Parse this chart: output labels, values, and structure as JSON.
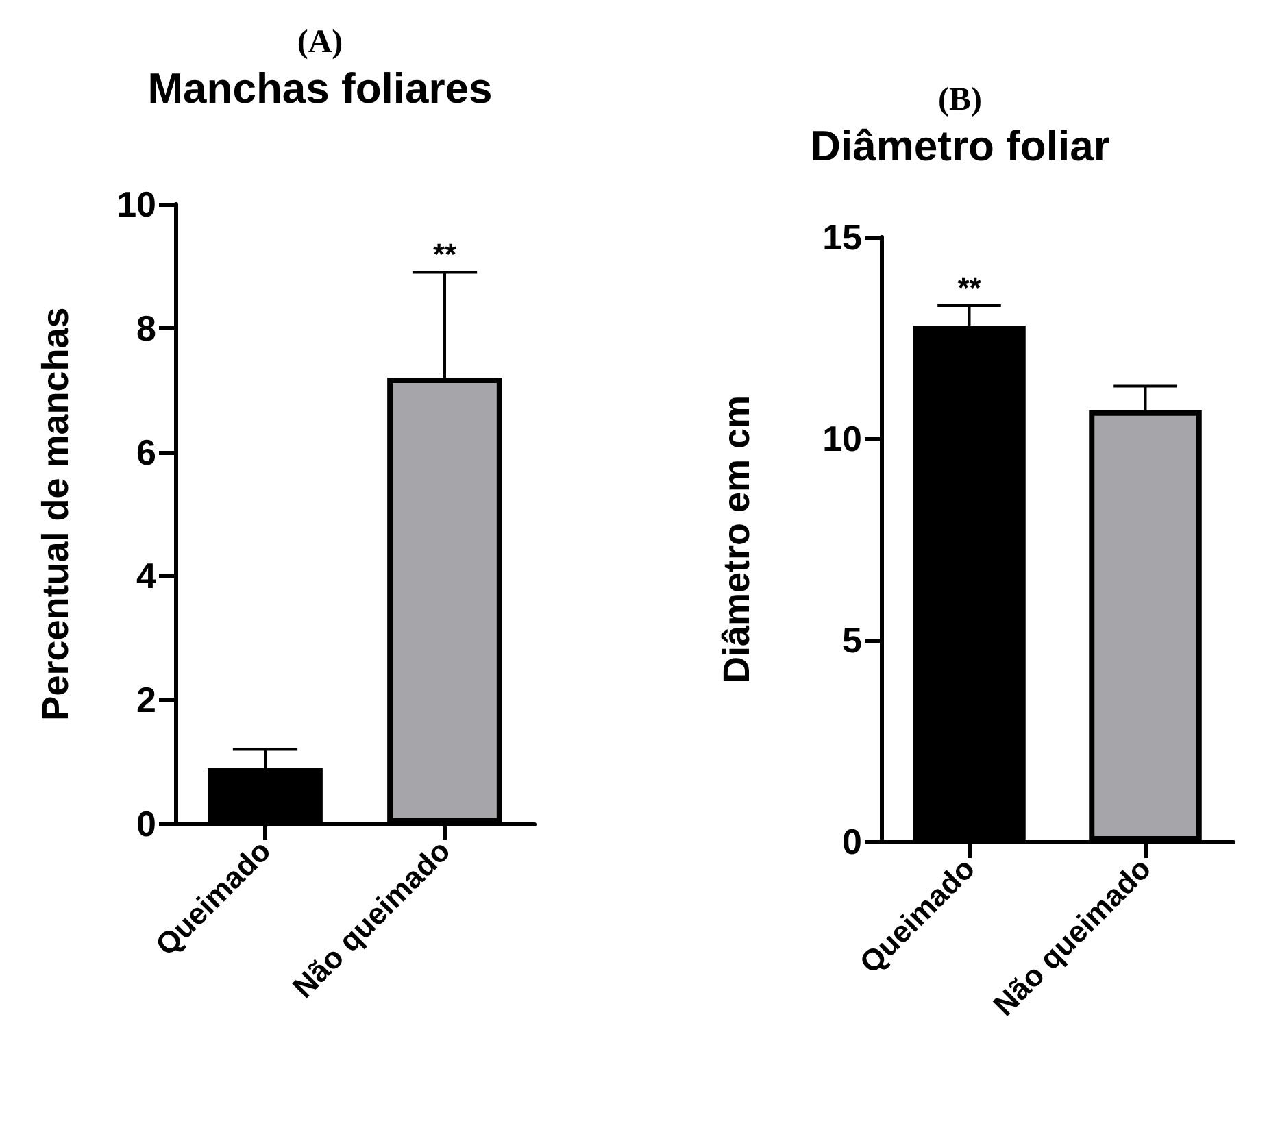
{
  "chart_data": [
    {
      "type": "bar",
      "title": "(A)",
      "subtitle": "Manchas foliares",
      "ylabel": "Percentual de manchas",
      "categories": [
        "Queimado",
        "Não queimado"
      ],
      "values": [
        0.9,
        7.2
      ],
      "colors": [
        "#000000",
        "#a6a6aa"
      ],
      "errors": [
        0.3,
        1.7
      ],
      "ylim": [
        0,
        10
      ],
      "yticks": [
        0,
        2,
        4,
        6,
        8,
        10
      ],
      "annotations": [
        {
          "text": "**",
          "x": "Não queimado",
          "y": 8.9
        }
      ]
    },
    {
      "type": "bar",
      "title": "(B)",
      "subtitle": "Diâmetro foliar",
      "ylabel": "Diâmetro em cm",
      "categories": [
        "Queimado",
        "Não queimado"
      ],
      "values": [
        12.8,
        10.7
      ],
      "colors": [
        "#000000",
        "#a6a6aa"
      ],
      "errors": [
        0.5,
        0.6
      ],
      "ylim": [
        0,
        15
      ],
      "yticks": [
        0,
        5,
        10,
        15
      ],
      "annotations": [
        {
          "text": "**",
          "x": "Queimado",
          "y": 13.3
        }
      ]
    }
  ]
}
